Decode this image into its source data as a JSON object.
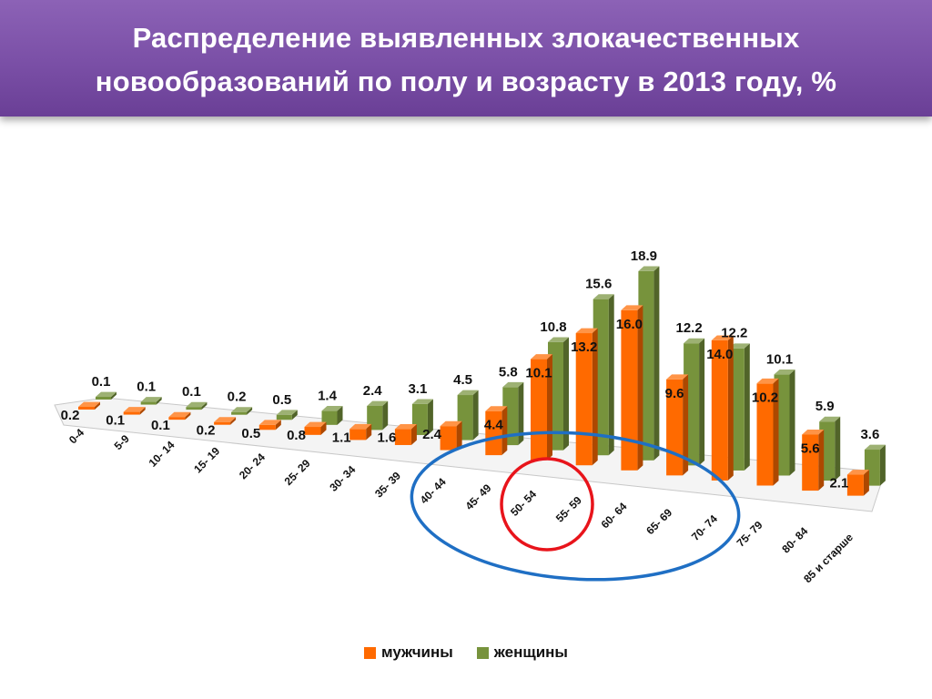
{
  "slide": {
    "title_line1": "Распределение выявленных злокачественных",
    "title_line2": "новообразований по полу и возрасту в 2013 году, %"
  },
  "colors": {
    "men": "#ff6a00",
    "women": "#77933c",
    "highlight_blue": "#1f6fc4",
    "highlight_red": "#e8141b"
  },
  "chart_data": {
    "type": "bar",
    "title": "Распределение выявленных злокачественных новообразований по полу и возрасту в 2013 году, %",
    "categories": [
      "0-4",
      "5-9",
      "10- 14",
      "15- 19",
      "20- 24",
      "25- 29",
      "30- 34",
      "35- 39",
      "40- 44",
      "45- 49",
      "50- 54",
      "55- 59",
      "60- 64",
      "65- 69",
      "70- 74",
      "75- 79",
      "80- 84",
      "85 и старше"
    ],
    "series": [
      {
        "name": "мужчины",
        "values": [
          0.2,
          0.1,
          0.1,
          0.2,
          0.5,
          0.8,
          1.1,
          1.6,
          2.4,
          4.4,
          10.1,
          13.2,
          16.0,
          9.6,
          14.0,
          10.2,
          5.6,
          2.1
        ]
      },
      {
        "name": "женщины",
        "values": [
          0.1,
          0.1,
          0.1,
          0.2,
          0.5,
          1.4,
          2.4,
          3.1,
          4.5,
          5.8,
          10.8,
          15.6,
          18.9,
          12.2,
          12.2,
          10.1,
          5.9,
          3.6
        ]
      }
    ],
    "labels": {
      "men": [
        "0.2",
        "0.1",
        "0.1",
        "0.2",
        "0.5",
        "0.8",
        "1.1",
        "1.6",
        "2.4",
        "4.4",
        "10.1",
        "13.2",
        "16.0",
        "9.6",
        "14.0",
        "10.2",
        "5.6",
        "2.1"
      ],
      "women": [
        "0.1",
        "0.1",
        "0.1",
        "0.2",
        "0.5",
        "1.4",
        "2.4",
        "3.1",
        "4.5",
        "5.8",
        "10.8",
        "15.6",
        "18.9",
        "12.2",
        "12.2",
        "10.1",
        "5.9",
        "3.6"
      ]
    },
    "style": "3d-clustered-column",
    "grid": false,
    "legend_position": "bottom",
    "annotations": [
      "blue ellipse around 45- 49 … 75- 79",
      "red circle around 55- 59 … 60- 64"
    ]
  },
  "legend": {
    "men": "мужчины",
    "women": "женщины"
  }
}
